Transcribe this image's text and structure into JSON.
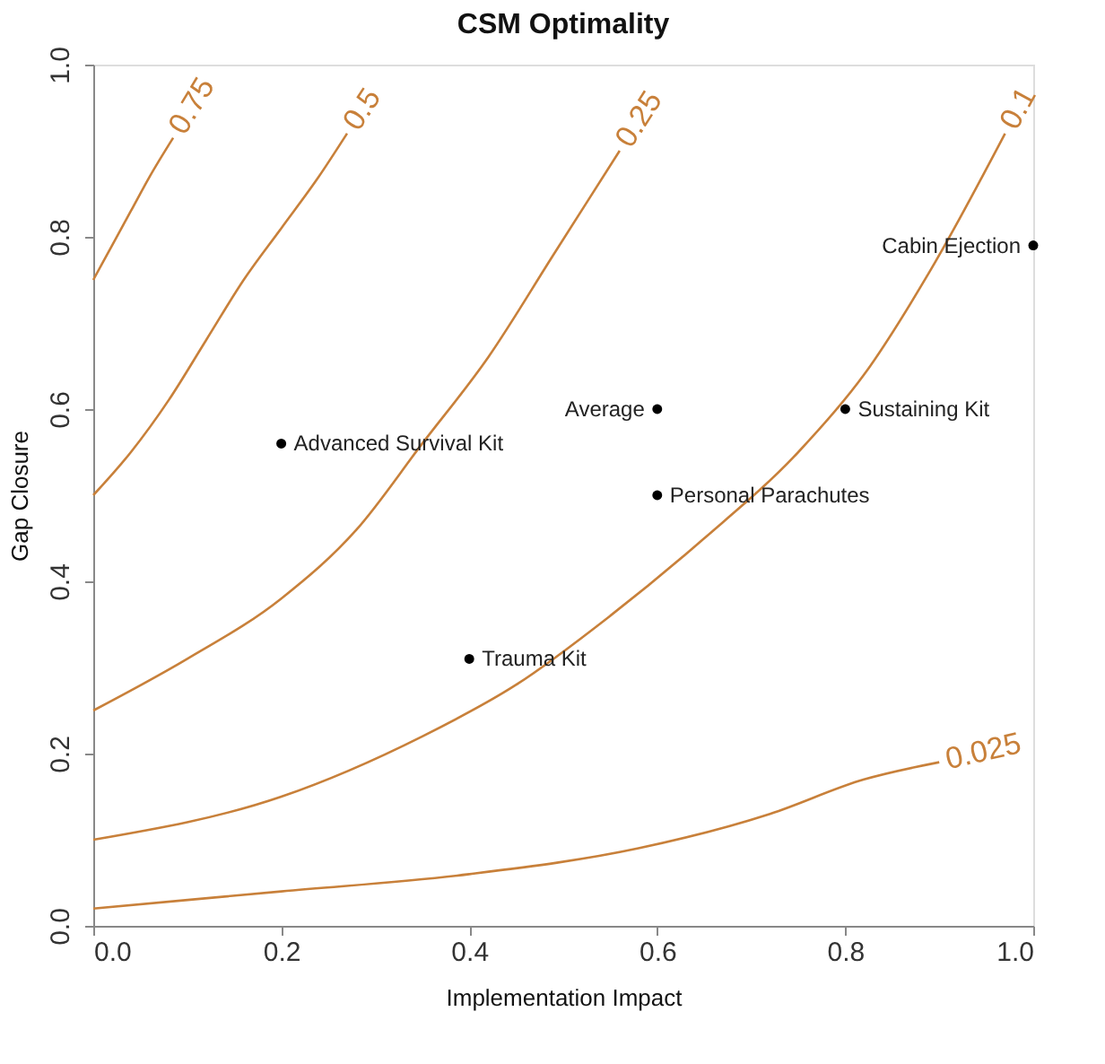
{
  "chart_data": {
    "type": "scatter",
    "title": "CSM Optimality",
    "xlabel": "Implementation Impact",
    "ylabel": "Gap Closure",
    "xlim": [
      0,
      1
    ],
    "ylim": [
      0,
      1
    ],
    "xticks": [
      {
        "value": 0,
        "label": "0.0"
      },
      0.2,
      0.4,
      0.6,
      0.8,
      {
        "value": 1,
        "label": "1.0"
      }
    ],
    "yticks": [
      {
        "value": 0,
        "label": "0.0"
      },
      0.2,
      0.4,
      0.6,
      0.8,
      {
        "value": 1,
        "label": "1.0"
      }
    ],
    "grid": false,
    "series": [
      {
        "name": "0.75",
        "type": "line",
        "marker": "none",
        "color": "#c8803a",
        "x": [
          0,
          0.02,
          0.04,
          0.06,
          0.085
        ],
        "values": [
          0.75,
          0.79,
          0.83,
          0.87,
          0.915
        ]
      },
      {
        "name": "0.5",
        "type": "line",
        "marker": "none",
        "color": "#c8803a",
        "x": [
          0,
          0.04,
          0.08,
          0.12,
          0.16,
          0.2,
          0.24,
          0.27
        ],
        "values": [
          0.5,
          0.55,
          0.61,
          0.68,
          0.75,
          0.81,
          0.87,
          0.92
        ]
      },
      {
        "name": "0.25",
        "type": "line",
        "marker": "none",
        "color": "#c8803a",
        "x": [
          0,
          0.1,
          0.2,
          0.28,
          0.35,
          0.42,
          0.49,
          0.56
        ],
        "values": [
          0.25,
          0.31,
          0.38,
          0.46,
          0.56,
          0.66,
          0.78,
          0.9
        ]
      },
      {
        "name": "0.1",
        "type": "line",
        "marker": "none",
        "color": "#c8803a",
        "x": [
          0,
          0.2,
          0.35,
          0.45,
          0.55,
          0.65,
          0.75,
          0.82,
          0.89,
          0.97
        ],
        "values": [
          0.1,
          0.15,
          0.22,
          0.28,
          0.36,
          0.45,
          0.55,
          0.64,
          0.76,
          0.92
        ]
      },
      {
        "name": "0.025",
        "type": "line",
        "marker": "none",
        "color": "#c8803a",
        "x": [
          0,
          0.2,
          0.4,
          0.58,
          0.72,
          0.82,
          0.9
        ],
        "values": [
          0.02,
          0.04,
          0.06,
          0.09,
          0.13,
          0.17,
          0.19
        ]
      },
      {
        "marker": "circle",
        "color": "#000000",
        "x": [
          0.2,
          0.6,
          0.6,
          0.8,
          1.0,
          0.4
        ],
        "values": [
          0.56,
          0.6,
          0.5,
          0.6,
          0.79,
          0.31
        ]
      }
    ],
    "annotations": [
      {
        "text": "Advanced Survival Kit",
        "x": 0.2,
        "y": 0.56
      },
      {
        "text": "Average",
        "x": 0.6,
        "y": 0.6
      },
      {
        "text": "Personal Parachutes",
        "x": 0.6,
        "y": 0.5
      },
      {
        "text": "Sustaining Kit",
        "x": 0.8,
        "y": 0.6
      },
      {
        "text": "Cabin Ejection",
        "x": 1.0,
        "y": 0.79
      },
      {
        "text": "Trauma Kit",
        "x": 0.4,
        "y": 0.31
      }
    ]
  }
}
